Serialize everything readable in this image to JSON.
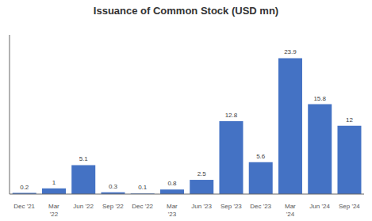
{
  "chart_data": {
    "type": "bar",
    "title": "Issuance of Common Stock (USD mn)",
    "categories": [
      "Dec '21",
      "Mar\n'22",
      "Jun '22",
      "Sep '22",
      "Dec '22",
      "Mar\n'23",
      "Jun '23",
      "Sep '23",
      "Dec '23",
      "Mar\n'24",
      "Jun '24",
      "Sep '24"
    ],
    "values": [
      0.2,
      1.0,
      5.1,
      0.3,
      0.1,
      0.8,
      2.5,
      12.8,
      5.6,
      23.9,
      15.8,
      12.0
    ],
    "color": "#4472C4",
    "ylim": [
      0,
      28
    ],
    "grid": false,
    "data_labels": true,
    "tick_labels": "x"
  }
}
